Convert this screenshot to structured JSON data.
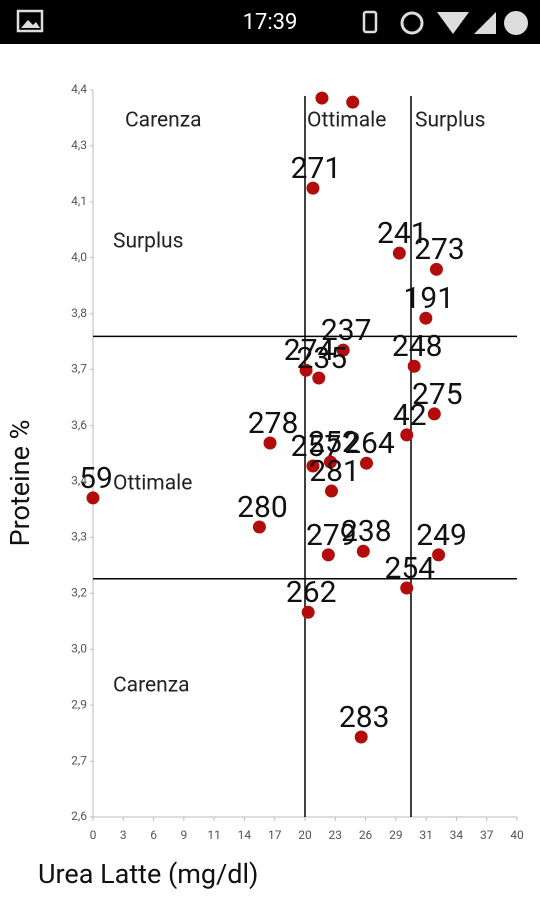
{
  "status_time": "17:39",
  "chart_data": {
    "type": "scatter",
    "xlabel": "Urea Latte (mg/dl)",
    "ylabel": "Proteine %",
    "xlim": [
      0,
      40
    ],
    "xticks": [
      0,
      {
        "value": 2.857,
        "label": "3"
      },
      {
        "value": 5.714,
        "label": "6"
      },
      {
        "value": 8.571,
        "label": "9"
      },
      {
        "value": 11.429,
        "label": "11"
      },
      {
        "value": 14.286,
        "label": "14"
      },
      {
        "value": 17.143,
        "label": "17"
      },
      20,
      {
        "value": 22.857,
        "label": "23"
      },
      {
        "value": 25.714,
        "label": "26"
      },
      {
        "value": 28.571,
        "label": "29"
      },
      {
        "value": 31.429,
        "label": "31"
      },
      {
        "value": 34.286,
        "label": "34"
      },
      {
        "value": 37.143,
        "label": "37"
      },
      40
    ],
    "ylim": [
      2.6,
      4.4
    ],
    "yticks": [
      {
        "value": 2.6,
        "label": "2,6"
      },
      {
        "value": 2.738,
        "label": "2,7"
      },
      {
        "value": 2.877,
        "label": "2,9"
      },
      {
        "value": 3.015,
        "label": "3,0"
      },
      {
        "value": 3.154,
        "label": "3,2"
      },
      {
        "value": 3.292,
        "label": "3,3"
      },
      {
        "value": 3.431,
        "label": "3,4"
      },
      {
        "value": 3.569,
        "label": "3,6"
      },
      {
        "value": 3.708,
        "label": "3,7"
      },
      {
        "value": 3.846,
        "label": "3,8"
      },
      {
        "value": 3.985,
        "label": "4,0"
      },
      {
        "value": 4.123,
        "label": "4,1"
      },
      {
        "value": 4.262,
        "label": "4,3"
      },
      {
        "value": 4.4,
        "label": "4,4"
      }
    ],
    "vlines": [
      20,
      30
    ],
    "hlines": [
      3.79,
      3.19
    ],
    "annotations": [
      "Carenza",
      "Ottimale",
      "Surplus",
      "Surplus",
      "Ottimale",
      "Carenza"
    ],
    "color": "#b30c0c",
    "x": [
      21.6,
      24.5,
      20.75,
      28.9,
      32.4,
      31.4,
      23.6,
      30.3,
      20.1,
      21.3,
      32.2,
      29.6,
      16.7,
      25.8,
      20.75,
      22.4,
      22.5,
      0,
      15.7,
      22.2,
      25.5,
      32.6,
      29.6,
      20.3,
      25.3
    ],
    "values": [
      4.38,
      4.37,
      4.157,
      3.996,
      3.956,
      3.835,
      3.756,
      3.716,
      3.706,
      3.687,
      3.598,
      3.546,
      3.526,
      3.476,
      3.469,
      3.479,
      3.407,
      3.39,
      3.318,
      3.249,
      3.258,
      3.249,
      3.167,
      3.107,
      2.798
    ],
    "point_labels": [
      null,
      null,
      "271",
      "241",
      "273",
      "191",
      "237",
      "248",
      "274",
      "235",
      "275",
      "42",
      "278",
      "264",
      "257",
      "252",
      "281",
      "59",
      "280",
      "279",
      "238",
      "249",
      "254",
      "262",
      "283"
    ]
  }
}
